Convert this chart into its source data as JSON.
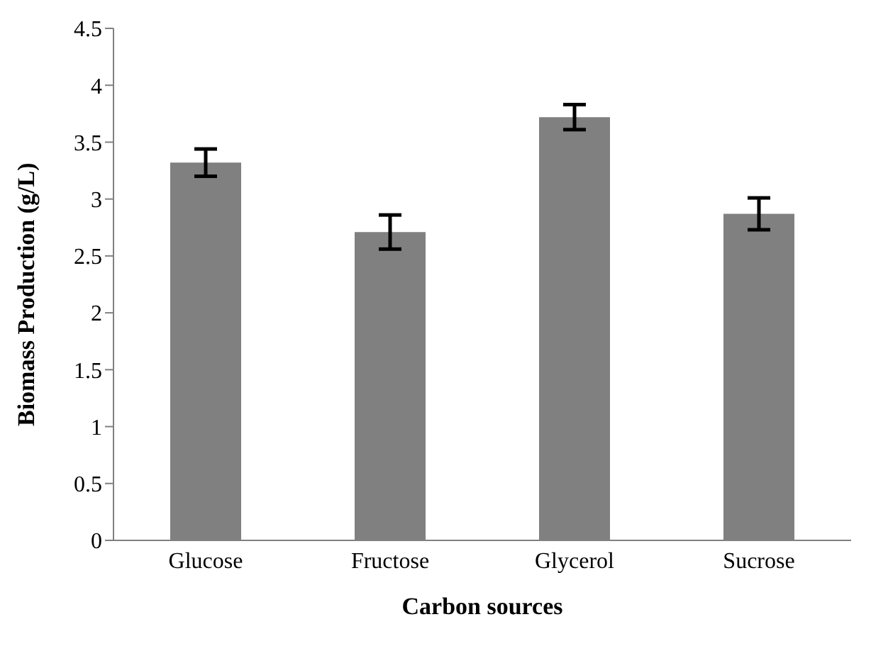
{
  "chart_data": {
    "type": "bar",
    "xlabel": "Carbon sources",
    "ylabel": "Biomass Production (g/L)",
    "categories": [
      "Glucose",
      "Fructose",
      "Glycerol",
      "Sucrose"
    ],
    "values": [
      3.32,
      2.71,
      3.72,
      2.87
    ],
    "errors": [
      0.12,
      0.15,
      0.11,
      0.14
    ],
    "color": "#808080",
    "ylim": [
      0,
      4.5
    ],
    "yticks": [
      0,
      0.5,
      1,
      1.5,
      2,
      2.5,
      3,
      3.5,
      4,
      4.5
    ],
    "grid": false,
    "legend": false
  }
}
